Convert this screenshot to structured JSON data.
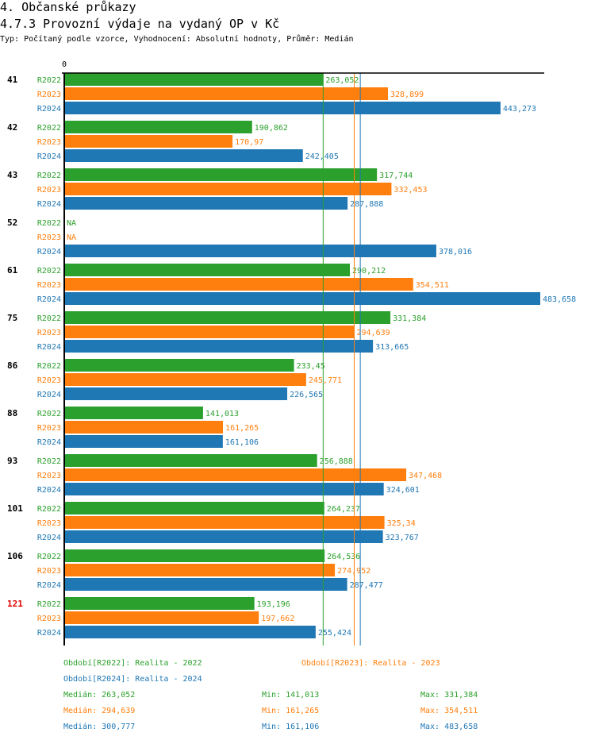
{
  "header": {
    "section_title": "4. Občanské průkazy",
    "chart_title": "4.7.3 Provozní výdaje na vydaný OP v Kč",
    "subtitle": "Typ: Počítaný podle vzorce, Vyhodnocení: Absolutní hodnoty, Průměr: Medián"
  },
  "colors": {
    "R2022": "#2ca02c",
    "R2023": "#ff7f0e",
    "R2024": "#1f77b4",
    "highlight_group": "#e00000",
    "axis": "#000000"
  },
  "chart_data": {
    "type": "bar",
    "orientation": "horizontal",
    "title": "4.7.3 Provozní výdaje na vydaný OP v Kč",
    "xlabel": "",
    "ylabel": "",
    "axis_zero_label": "0",
    "xlim": [
      0,
      483.658
    ],
    "grid": false,
    "categories": [
      "41",
      "42",
      "43",
      "52",
      "61",
      "75",
      "86",
      "88",
      "93",
      "101",
      "106",
      "121"
    ],
    "highlighted_category": "121",
    "series": [
      {
        "name": "R2022",
        "values": [
          263.052,
          190.862,
          317.744,
          null,
          290.212,
          331.384,
          233.45,
          141.013,
          256.888,
          264.237,
          264.536,
          193.196
        ],
        "labels": [
          "263,052",
          "190,862",
          "317,744",
          "NA",
          "290,212",
          "331,384",
          "233,45",
          "141,013",
          "256,888",
          "264,237",
          "264,536",
          "193,196"
        ]
      },
      {
        "name": "R2023",
        "values": [
          328.899,
          170.97,
          332.453,
          null,
          354.511,
          294.639,
          245.771,
          161.265,
          347.468,
          325.34,
          274.952,
          197.662
        ],
        "labels": [
          "328,899",
          "170,97",
          "332,453",
          "NA",
          "354,511",
          "294,639",
          "245,771",
          "161,265",
          "347,468",
          "325,34",
          "274,952",
          "197,662"
        ]
      },
      {
        "name": "R2024",
        "values": [
          443.273,
          242.405,
          287.888,
          378.016,
          483.658,
          313.665,
          226.565,
          161.106,
          324.601,
          323.767,
          287.477,
          255.424
        ],
        "labels": [
          "443,273",
          "242,405",
          "287,888",
          "378,016",
          "483,658",
          "313,665",
          "226,565",
          "161,106",
          "324,601",
          "323,767",
          "287,477",
          "255,424"
        ]
      }
    ],
    "reference_lines": [
      {
        "series": "R2022",
        "type": "median",
        "value": 263.052
      },
      {
        "series": "R2023",
        "type": "median",
        "value": 294.639
      },
      {
        "series": "R2024",
        "type": "median",
        "value": 300.777
      }
    ],
    "legend": [
      {
        "series": "R2022",
        "text": "Období[R2022]: Realita - 2022"
      },
      {
        "series": "R2023",
        "text": "Období[R2023]: Realita - 2023"
      },
      {
        "series": "R2024",
        "text": "Období[R2024]: Realita - 2024"
      }
    ],
    "stats": [
      {
        "series": "R2022",
        "median": "Medián: 263,052",
        "min": "Min: 141,013",
        "max": "Max: 331,384"
      },
      {
        "series": "R2023",
        "median": "Medián: 294,639",
        "min": "Min: 161,265",
        "max": "Max: 354,511"
      },
      {
        "series": "R2024",
        "median": "Medián: 300,777",
        "min": "Min: 161,106",
        "max": "Max: 483,658"
      }
    ]
  }
}
